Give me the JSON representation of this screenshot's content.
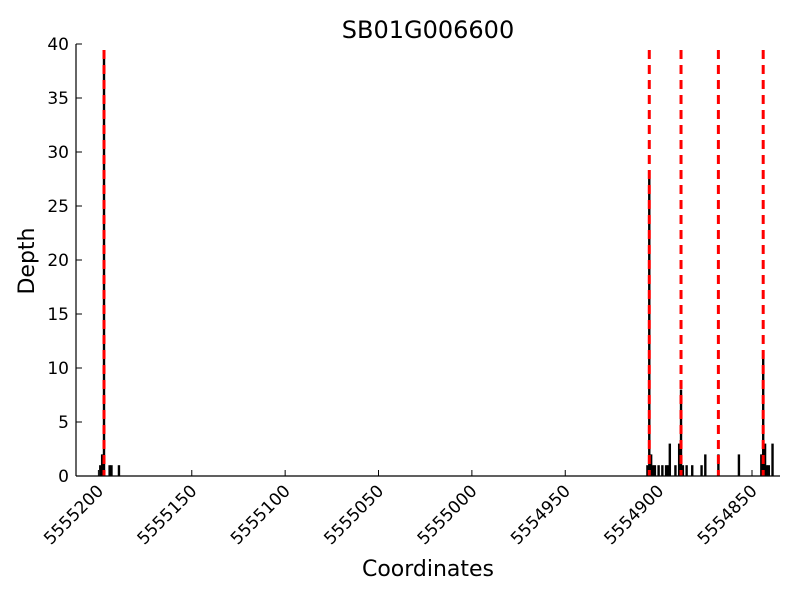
{
  "chart_data": {
    "type": "bar",
    "title": "SB01G006600",
    "xlabel": "Coordinates",
    "ylabel": "Depth",
    "xlim": [
      5555212,
      5554835
    ],
    "ylim": [
      0,
      40
    ],
    "x_reversed": true,
    "grid": false,
    "legend": "none",
    "yticks": [
      0,
      5,
      10,
      15,
      20,
      25,
      30,
      35,
      40
    ],
    "ytick_labels": [
      "0",
      "5",
      "10",
      "15",
      "20",
      "25",
      "30",
      "35",
      "40"
    ],
    "xticks": [
      5555200,
      5555150,
      5555100,
      5555050,
      5555000,
      5554950,
      5554900,
      5554850
    ],
    "xtick_labels": [
      "5555200",
      "5555150",
      "5555100",
      "5555050",
      "5555000",
      "5554950",
      "5554900",
      "5554850"
    ],
    "bar_color": "#000000",
    "vline_color": "#ff0000",
    "vlines": [
      5555197,
      5554905,
      5554888,
      5554868,
      5554844
    ],
    "bars": [
      {
        "x": 5555199,
        "y": 1
      },
      {
        "x": 5555198,
        "y": 2
      },
      {
        "x": 5555197,
        "y": 39
      },
      {
        "x": 5555194,
        "y": 1
      },
      {
        "x": 5555193,
        "y": 1
      },
      {
        "x": 5555189,
        "y": 1
      },
      {
        "x": 5554906,
        "y": 1
      },
      {
        "x": 5554905,
        "y": 28
      },
      {
        "x": 5554904,
        "y": 2
      },
      {
        "x": 5554903,
        "y": 1
      },
      {
        "x": 5554902,
        "y": 1
      },
      {
        "x": 5554900,
        "y": 1
      },
      {
        "x": 5554898,
        "y": 1
      },
      {
        "x": 5554896,
        "y": 1
      },
      {
        "x": 5554895,
        "y": 1
      },
      {
        "x": 5554894,
        "y": 3
      },
      {
        "x": 5554891,
        "y": 1
      },
      {
        "x": 5554889,
        "y": 3
      },
      {
        "x": 5554888,
        "y": 8
      },
      {
        "x": 5554887,
        "y": 1
      },
      {
        "x": 5554885,
        "y": 1
      },
      {
        "x": 5554882,
        "y": 1
      },
      {
        "x": 5554877,
        "y": 1
      },
      {
        "x": 5554875,
        "y": 2
      },
      {
        "x": 5554868,
        "y": 2
      },
      {
        "x": 5554857,
        "y": 2
      },
      {
        "x": 5554845,
        "y": 2
      },
      {
        "x": 5554844,
        "y": 11
      },
      {
        "x": 5554843,
        "y": 3
      },
      {
        "x": 5554842,
        "y": 1
      },
      {
        "x": 5554841,
        "y": 1
      },
      {
        "x": 5554839,
        "y": 3
      }
    ]
  }
}
